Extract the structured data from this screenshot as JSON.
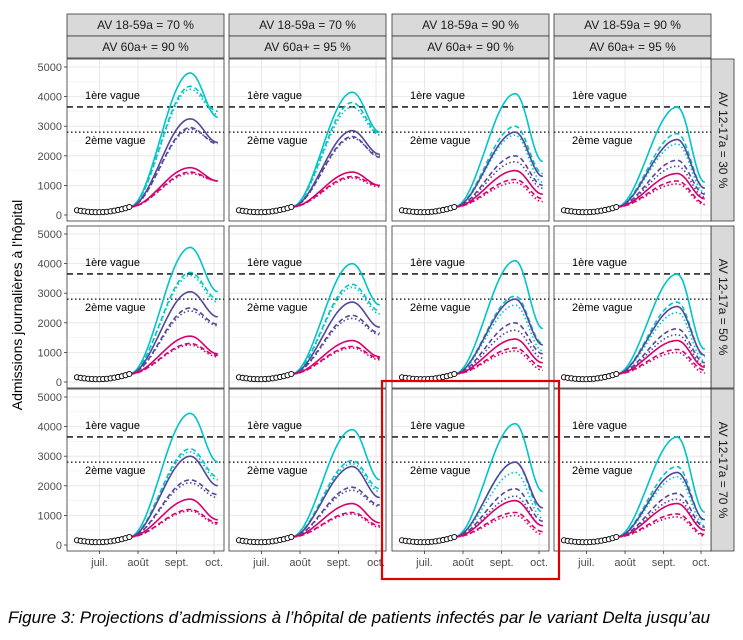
{
  "chart_data": {
    "type": "line",
    "ylabel": "Admissions journalières à l'hôpital",
    "ylim": [
      0,
      5000
    ],
    "yticks": [
      "0",
      "1000",
      "2000",
      "3000",
      "4000",
      "5000"
    ],
    "xticks": [
      "juil.",
      "août",
      "sept.",
      "oct."
    ],
    "x_dates": [
      "2021-06-15",
      "2021-06-22",
      "2021-07-01",
      "2021-07-08",
      "2021-07-15",
      "2021-07-22",
      "2021-08-01",
      "2021-08-08",
      "2021-08-15",
      "2021-08-22",
      "2021-09-01",
      "2021-09-08",
      "2021-09-15",
      "2021-09-22",
      "2021-10-01",
      "2021-10-06"
    ],
    "observed_x_dates": [
      "2021-06-13",
      "2021-06-16",
      "2021-06-19",
      "2021-06-22",
      "2021-06-25",
      "2021-06-28",
      "2021-07-01",
      "2021-07-04",
      "2021-07-07",
      "2021-07-10",
      "2021-07-13",
      "2021-07-16",
      "2021-07-19",
      "2021-07-22",
      "2021-07-25"
    ],
    "observed": [
      160,
      140,
      125,
      110,
      100,
      95,
      95,
      100,
      110,
      125,
      145,
      170,
      195,
      230,
      270
    ],
    "reference_lines": [
      {
        "label": "1ère vague",
        "value": 3650,
        "style": "dashed"
      },
      {
        "label": "2ème vague",
        "value": 2800,
        "style": "dotted"
      }
    ],
    "column_strips": [
      {
        "row1": "AV 18-59a =  70 %",
        "row2": "AV 60a+ =  90 %"
      },
      {
        "row1": "AV 18-59a =  70 %",
        "row2": "AV 60a+ =  95 %"
      },
      {
        "row1": "AV 18-59a =  90 %",
        "row2": "AV 60a+ =  90 %"
      },
      {
        "row1": "AV 18-59a =  90 %",
        "row2": "AV 60a+ =  95 %"
      }
    ],
    "row_strips": [
      "AV 12-17a =  30 %",
      "AV 12-17a =  50 %",
      "AV 12-17a =  70 %"
    ],
    "series_styles": [
      {
        "color": "#00c5c6",
        "dash": "solid"
      },
      {
        "color": "#00c5c6",
        "dash": "dashed"
      },
      {
        "color": "#00c5c6",
        "dash": "dotted"
      },
      {
        "color": "#54479a",
        "dash": "solid"
      },
      {
        "color": "#54479a",
        "dash": "dashed"
      },
      {
        "color": "#54479a",
        "dash": "dotted"
      },
      {
        "color": "#d7006f",
        "dash": "solid"
      },
      {
        "color": "#d7006f",
        "dash": "dashed"
      },
      {
        "color": "#d7006f",
        "dash": "dotted"
      }
    ],
    "highlight_panel": "row3-col3",
    "panels": [
      {
        "row": 1,
        "col": 1,
        "series": [
          {
            "peak": 4800,
            "end": 3300
          },
          {
            "peak": 4350,
            "end": 3500
          },
          {
            "peak": 4250,
            "end": 3400
          },
          {
            "peak": 3250,
            "end": 2450
          },
          {
            "peak": 2950,
            "end": 2400
          },
          {
            "peak": 2900,
            "end": 2450
          },
          {
            "peak": 1600,
            "end": 1150
          },
          {
            "peak": 1450,
            "end": 1150
          },
          {
            "peak": 1400,
            "end": 1150
          }
        ]
      },
      {
        "row": 1,
        "col": 2,
        "series": [
          {
            "peak": 4150,
            "end": 2800
          },
          {
            "peak": 3800,
            "end": 2750
          },
          {
            "peak": 3650,
            "end": 2700
          },
          {
            "peak": 2850,
            "end": 2050
          },
          {
            "peak": 2650,
            "end": 1950
          },
          {
            "peak": 2600,
            "end": 2000
          },
          {
            "peak": 1450,
            "end": 1000
          },
          {
            "peak": 1300,
            "end": 1000
          },
          {
            "peak": 1250,
            "end": 950
          }
        ]
      },
      {
        "row": 1,
        "col": 3,
        "series": [
          {
            "peak": 4100,
            "end": 1800
          },
          {
            "peak": 3000,
            "end": 1400
          },
          {
            "peak": 2700,
            "end": 1100
          },
          {
            "peak": 2800,
            "end": 1300
          },
          {
            "peak": 2000,
            "end": 1000
          },
          {
            "peak": 1800,
            "end": 900
          },
          {
            "peak": 1500,
            "end": 700
          },
          {
            "peak": 1200,
            "end": 550
          },
          {
            "peak": 1100,
            "end": 450
          }
        ]
      },
      {
        "row": 1,
        "col": 4,
        "series": [
          {
            "peak": 3650,
            "end": 1100
          },
          {
            "peak": 2750,
            "end": 900
          },
          {
            "peak": 2400,
            "end": 750
          },
          {
            "peak": 2550,
            "end": 900
          },
          {
            "peak": 1850,
            "end": 700
          },
          {
            "peak": 1650,
            "end": 600
          },
          {
            "peak": 1400,
            "end": 550
          },
          {
            "peak": 1150,
            "end": 400
          },
          {
            "peak": 1050,
            "end": 350
          }
        ]
      },
      {
        "row": 2,
        "col": 1,
        "series": [
          {
            "peak": 4550,
            "end": 3050
          },
          {
            "peak": 3700,
            "end": 2800
          },
          {
            "peak": 3600,
            "end": 2700
          },
          {
            "peak": 3050,
            "end": 2200
          },
          {
            "peak": 2500,
            "end": 1950
          },
          {
            "peak": 2400,
            "end": 1900
          },
          {
            "peak": 1550,
            "end": 950
          },
          {
            "peak": 1300,
            "end": 900
          },
          {
            "peak": 1250,
            "end": 850
          }
        ]
      },
      {
        "row": 2,
        "col": 2,
        "series": [
          {
            "peak": 4000,
            "end": 2600
          },
          {
            "peak": 3300,
            "end": 2400
          },
          {
            "peak": 3200,
            "end": 2300
          },
          {
            "peak": 2700,
            "end": 1850
          },
          {
            "peak": 2250,
            "end": 1650
          },
          {
            "peak": 2150,
            "end": 1600
          },
          {
            "peak": 1400,
            "end": 850
          },
          {
            "peak": 1200,
            "end": 800
          },
          {
            "peak": 1150,
            "end": 750
          }
        ]
      },
      {
        "row": 2,
        "col": 3,
        "series": [
          {
            "peak": 4100,
            "end": 1800
          },
          {
            "peak": 2900,
            "end": 1300
          },
          {
            "peak": 2600,
            "end": 1050
          },
          {
            "peak": 2800,
            "end": 1250
          },
          {
            "peak": 2000,
            "end": 950
          },
          {
            "peak": 1750,
            "end": 800
          },
          {
            "peak": 1450,
            "end": 650
          },
          {
            "peak": 1150,
            "end": 500
          },
          {
            "peak": 1050,
            "end": 400
          }
        ]
      },
      {
        "row": 2,
        "col": 4,
        "series": [
          {
            "peak": 3650,
            "end": 1100
          },
          {
            "peak": 2700,
            "end": 850
          },
          {
            "peak": 2350,
            "end": 700
          },
          {
            "peak": 2550,
            "end": 900
          },
          {
            "peak": 1800,
            "end": 650
          },
          {
            "peak": 1600,
            "end": 550
          },
          {
            "peak": 1400,
            "end": 500
          },
          {
            "peak": 1100,
            "end": 400
          },
          {
            "peak": 1000,
            "end": 300
          }
        ]
      },
      {
        "row": 3,
        "col": 1,
        "series": [
          {
            "peak": 4450,
            "end": 2800
          },
          {
            "peak": 3250,
            "end": 2300
          },
          {
            "peak": 3150,
            "end": 2200
          },
          {
            "peak": 3000,
            "end": 2000
          },
          {
            "peak": 2200,
            "end": 1700
          },
          {
            "peak": 2100,
            "end": 1600
          },
          {
            "peak": 1550,
            "end": 850
          },
          {
            "peak": 1200,
            "end": 750
          },
          {
            "peak": 1150,
            "end": 700
          }
        ]
      },
      {
        "row": 3,
        "col": 2,
        "series": [
          {
            "peak": 3900,
            "end": 2200
          },
          {
            "peak": 2850,
            "end": 1900
          },
          {
            "peak": 2750,
            "end": 1800
          },
          {
            "peak": 2650,
            "end": 1600
          },
          {
            "peak": 1950,
            "end": 1350
          },
          {
            "peak": 1850,
            "end": 1300
          },
          {
            "peak": 1400,
            "end": 750
          },
          {
            "peak": 1100,
            "end": 650
          },
          {
            "peak": 1050,
            "end": 600
          }
        ]
      },
      {
        "row": 3,
        "col": 3,
        "series": [
          {
            "peak": 4100,
            "end": 1800
          },
          {
            "peak": 2800,
            "end": 1100
          },
          {
            "peak": 2450,
            "end": 900
          },
          {
            "peak": 2800,
            "end": 1250
          },
          {
            "peak": 1900,
            "end": 800
          },
          {
            "peak": 1650,
            "end": 650
          },
          {
            "peak": 1500,
            "end": 650
          },
          {
            "peak": 1100,
            "end": 450
          },
          {
            "peak": 1000,
            "end": 350
          }
        ]
      },
      {
        "row": 3,
        "col": 4,
        "series": [
          {
            "peak": 3650,
            "end": 1100
          },
          {
            "peak": 2650,
            "end": 800
          },
          {
            "peak": 2300,
            "end": 650
          },
          {
            "peak": 2450,
            "end": 850
          },
          {
            "peak": 1750,
            "end": 600
          },
          {
            "peak": 1550,
            "end": 500
          },
          {
            "peak": 1400,
            "end": 500
          },
          {
            "peak": 1050,
            "end": 350
          },
          {
            "peak": 950,
            "end": 300
          }
        ]
      }
    ]
  },
  "caption": "Figure 3: Projections d’admissions à l’hôpital de patients infectés par le variant Delta jusqu’au"
}
